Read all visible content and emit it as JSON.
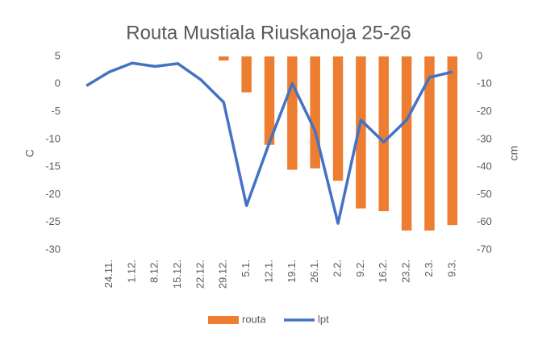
{
  "chart_data": {
    "type": "bar-line",
    "title": "Routa Mustiala Riuskanoja 25-26",
    "categories": [
      null,
      "24.11.",
      "1.12.",
      "8.12.",
      "15.12.",
      "22.12.",
      "29.12.",
      "5.1.",
      "12.1.",
      "19.1.",
      "26.1.",
      "2.2.",
      "9.2.",
      "16.2.",
      "23.2.",
      "2.3.",
      "9.3."
    ],
    "series": [
      {
        "name": "routa",
        "type": "bar",
        "axis": "y2",
        "color": "#ed7d31",
        "values": [
          null,
          null,
          null,
          null,
          null,
          null,
          -1.5,
          -13,
          -32,
          -41,
          -40.5,
          -45,
          -55,
          -56,
          -63,
          -63,
          -61
        ]
      },
      {
        "name": "lpt",
        "type": "line",
        "axis": "y",
        "color": "#4472c4",
        "values": [
          -0.3,
          2.2,
          3.8,
          3.2,
          3.7,
          0.8,
          -3.3,
          -22,
          -10.6,
          0.1,
          -8.5,
          -25.2,
          -6.5,
          -10.5,
          -6.5,
          1.2,
          2.2
        ]
      }
    ],
    "y_label": "C",
    "y2_label": "cm",
    "ylim": [
      -30,
      5
    ],
    "yticks": [
      5,
      0,
      -5,
      -10,
      -15,
      -20,
      -25,
      -30
    ],
    "y2lim": [
      -70,
      0
    ],
    "y2ticks": [
      0,
      -10,
      -20,
      -30,
      -40,
      -50,
      -60,
      -70
    ],
    "grid": false,
    "legend": "bottom"
  }
}
